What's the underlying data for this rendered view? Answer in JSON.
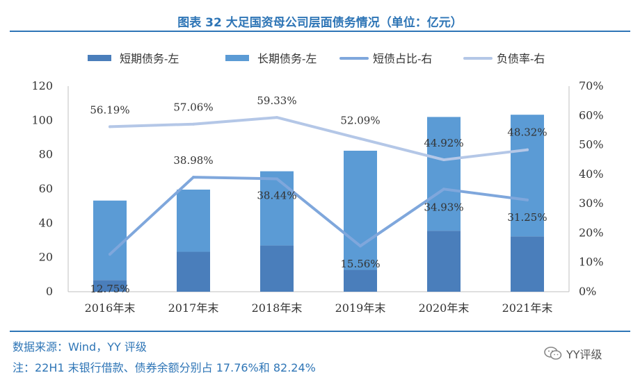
{
  "title": "图表 32 大足国资母公司层面债务情况（单位：亿元）",
  "footer": {
    "source": "数据来源：Wind，YY 评级",
    "note": "注：22H1 末银行借款、债券余额分别占 17.76%和 82.24%",
    "brand": "YY评级",
    "brand_icon": "wechat-icon"
  },
  "colors": {
    "accent": "#2e75b6",
    "short_debt": "#4a7ebb",
    "long_debt": "#5b9bd5",
    "short_ratio": "#7fa7dc",
    "debt_rate": "#b4c7e7"
  },
  "chart_data": {
    "type": "bar",
    "stacked": true,
    "categories": [
      "2016年末",
      "2017年末",
      "2018年末",
      "2019年末",
      "2020年末",
      "2021年末"
    ],
    "series": [
      {
        "name": "短期债务-左",
        "type": "bar",
        "axis": "left",
        "values": [
          6.8,
          23.3,
          27.0,
          12.8,
          35.6,
          32.3
        ]
      },
      {
        "name": "长期债务-左",
        "type": "bar",
        "axis": "left",
        "values": [
          46.4,
          36.3,
          43.3,
          69.5,
          66.4,
          71.0
        ]
      },
      {
        "name": "短债占比-右",
        "type": "line",
        "axis": "right",
        "values": [
          12.75,
          38.98,
          38.44,
          15.56,
          34.93,
          31.25
        ],
        "labels": [
          "12.75%",
          "38.98%",
          "38.44%",
          "15.56%",
          "34.93%",
          "31.25%"
        ]
      },
      {
        "name": "负债率-右",
        "type": "line",
        "axis": "right",
        "values": [
          56.19,
          57.06,
          59.33,
          52.09,
          44.92,
          48.32
        ],
        "labels": [
          "56.19%",
          "57.06%",
          "59.33%",
          "52.09%",
          "44.92%",
          "48.32%"
        ]
      }
    ],
    "y_left": {
      "ylim": [
        0,
        120
      ],
      "ticks": [
        "0",
        "20",
        "40",
        "60",
        "80",
        "100",
        "120"
      ]
    },
    "y_right": {
      "ylim": [
        0,
        70
      ],
      "ticks": [
        "0%",
        "10%",
        "20%",
        "30%",
        "40%",
        "50%",
        "60%",
        "70%"
      ]
    },
    "grid": false,
    "legend_position": "top"
  }
}
